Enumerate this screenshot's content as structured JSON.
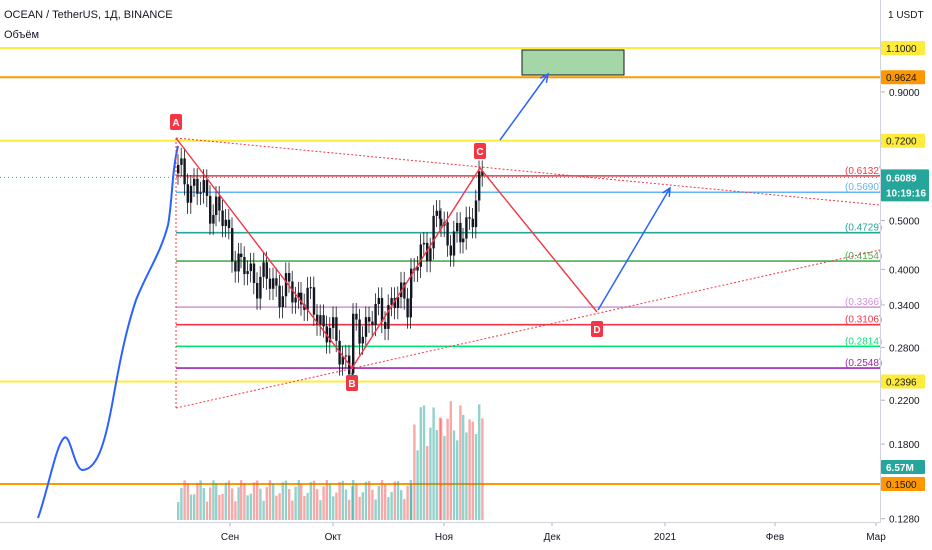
{
  "header": {
    "title": "OCEAN / TetherUS, 1Д, BINANCE",
    "volume_label": "Объём"
  },
  "colors": {
    "yellow": "#ffeb3b",
    "orange": "#ff9800",
    "red": "#f23645",
    "teal": "#26a69a",
    "green": "#4caf50",
    "purple": "#9c27b0",
    "blue_line": "#2962ff",
    "box_fill": "#a5d6a7"
  },
  "chart_data": {
    "type": "candlestick",
    "scale": "log",
    "ylim": [
      0.12,
      1.6
    ],
    "price_axis": {
      "unit": "USDT",
      "ticks": [
        "0.9000",
        "0.5000",
        "0.4000",
        "0.3400",
        "0.2800",
        "0.2200",
        "0.1800",
        "0.1280"
      ],
      "tick_values": [
        0.9,
        0.5,
        0.4,
        0.34,
        0.28,
        0.22,
        0.18,
        0.128
      ]
    },
    "time_axis": [
      "Сен",
      "Окт",
      "Ноя",
      "Дек",
      "2021",
      "Фев",
      "Мар"
    ],
    "levels": [
      {
        "label": "1.1000",
        "value": 1.1,
        "color": "#ffeb3b",
        "style": "solid",
        "badge": true
      },
      {
        "label": "0.9624",
        "value": 0.9624,
        "color": "#ff9800",
        "style": "solid",
        "badge": true
      },
      {
        "label": "0.7200",
        "value": 0.72,
        "color": "#ffeb3b",
        "style": "solid",
        "badge": true
      },
      {
        "label": "(0.6132)",
        "value": 0.6132,
        "color": "#f23645",
        "style": "solid",
        "badge": false
      },
      {
        "label": "(0.5690)",
        "value": 0.569,
        "color": "#64b5f6",
        "style": "solid",
        "badge": false
      },
      {
        "label": "(0.4729)",
        "value": 0.4729,
        "color": "#26a69a",
        "style": "solid",
        "badge": false
      },
      {
        "label": "(0.4154)",
        "value": 0.4154,
        "color": "#4caf50",
        "style": "solid",
        "badge": false
      },
      {
        "label": "(0.3366)",
        "value": 0.3366,
        "color": "#ce93d8",
        "style": "solid",
        "badge": false
      },
      {
        "label": "(0.3106)",
        "value": 0.3106,
        "color": "#f23645",
        "style": "solid",
        "badge": false
      },
      {
        "label": "(0.2814)",
        "value": 0.2814,
        "color": "#00e676",
        "style": "solid",
        "badge": false
      },
      {
        "label": "(0.2548)",
        "value": 0.2548,
        "color": "#9c27b0",
        "style": "solid",
        "badge": false
      },
      {
        "label": "0.2396",
        "value": 0.2396,
        "color": "#ffeb3b",
        "style": "solid",
        "badge": true
      },
      {
        "label": "0.1500",
        "value": 0.15,
        "color": "#ff9800",
        "style": "solid",
        "badge": true
      }
    ],
    "last_price": {
      "label": "0.6089",
      "value": 0.6089,
      "countdown": "10:19:16"
    },
    "volume_badge": "6.57M",
    "pattern_points": [
      {
        "label": "A",
        "value": 0.72
      },
      {
        "label": "B",
        "value": 0.2396
      },
      {
        "label": "C",
        "value": 0.6132
      },
      {
        "label": "D",
        "value": 0.3106
      }
    ]
  }
}
